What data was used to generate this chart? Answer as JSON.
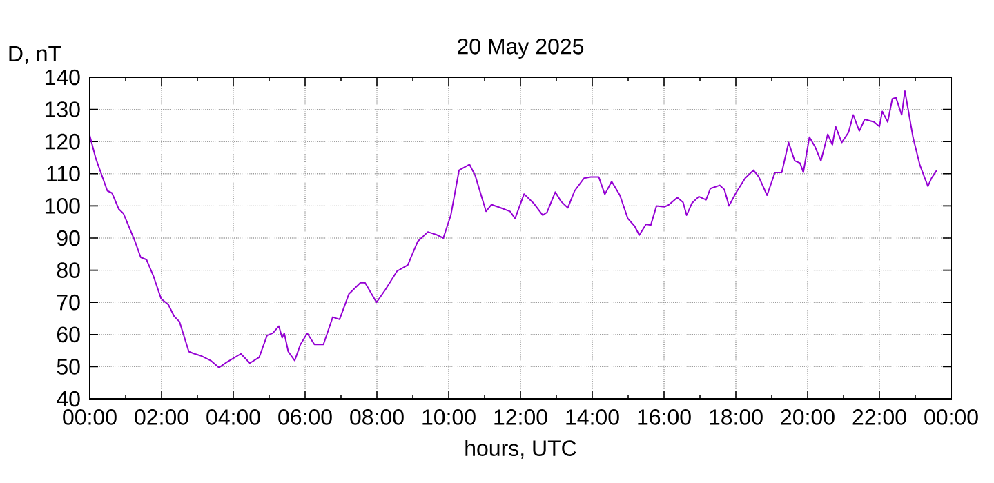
{
  "chart_data": {
    "type": "line",
    "title": "20 May 2025",
    "xlabel": "hours, UTC",
    "ylabel": "D, nT",
    "x": [
      0,
      0.17,
      0.49,
      0.62,
      0.81,
      0.94,
      1.26,
      1.42,
      1.58,
      1.77,
      1.99,
      2.19,
      2.35,
      2.5,
      2.76,
      2.92,
      3.12,
      3.37,
      3.6,
      3.82,
      4.21,
      4.46,
      4.72,
      4.94,
      5.1,
      5.27,
      5.36,
      5.42,
      5.53,
      5.71,
      5.87,
      6.06,
      6.26,
      6.51,
      6.77,
      6.96,
      7.22,
      7.54,
      7.67,
      7.99,
      8.24,
      8.56,
      8.86,
      9.14,
      9.42,
      9.65,
      9.85,
      10.06,
      10.29,
      10.58,
      10.74,
      11.04,
      11.19,
      11.45,
      11.71,
      11.85,
      12.1,
      12.36,
      12.62,
      12.74,
      12.97,
      13.13,
      13.32,
      13.51,
      13.77,
      13.96,
      14.18,
      14.35,
      14.54,
      14.77,
      14.99,
      15.18,
      15.31,
      15.5,
      15.63,
      15.79,
      16.01,
      16.14,
      16.37,
      16.53,
      16.63,
      16.78,
      16.97,
      17.17,
      17.29,
      17.55,
      17.68,
      17.81,
      18.0,
      18.26,
      18.49,
      18.64,
      18.87,
      19.09,
      19.28,
      19.47,
      19.64,
      19.79,
      19.88,
      20.05,
      20.21,
      20.37,
      20.56,
      20.69,
      20.78,
      20.95,
      21.14,
      21.27,
      21.44,
      21.59,
      21.85,
      22.0,
      22.08,
      22.23,
      22.36,
      22.46,
      22.62,
      22.71,
      22.94,
      23.13,
      23.35,
      23.45,
      23.6
    ],
    "series": [
      {
        "color": "#9400d3",
        "values": [
          121.9,
          114.7,
          104.7,
          104,
          99,
          97.6,
          89,
          84,
          83.3,
          78.3,
          71.1,
          69.3,
          65.7,
          64,
          54.7,
          54,
          53.3,
          51.9,
          49.7,
          51.4,
          54,
          51.1,
          52.9,
          59.7,
          60.4,
          62.6,
          59,
          60.4,
          54.7,
          51.9,
          56.9,
          60.4,
          56.9,
          56.9,
          65.4,
          64.7,
          72.6,
          76.1,
          76.1,
          70,
          74,
          79.7,
          81.6,
          89,
          91.9,
          91.1,
          90,
          97.1,
          111.1,
          112.9,
          109.4,
          98.3,
          100.4,
          99.4,
          98.3,
          96.1,
          103.7,
          100.9,
          97.1,
          98,
          104.3,
          101.4,
          99.4,
          104.7,
          108.6,
          109,
          109,
          103.6,
          107.6,
          103.3,
          96.1,
          93.7,
          90.9,
          94.3,
          94,
          100,
          99.7,
          100.4,
          102.6,
          101.1,
          97.1,
          100.9,
          102.9,
          101.9,
          105.4,
          106.4,
          105.1,
          100,
          104,
          108.6,
          111.1,
          109,
          103.3,
          110.4,
          110.4,
          119.7,
          114,
          113.3,
          110.4,
          121.4,
          118.3,
          114,
          122.3,
          119,
          124.7,
          119.7,
          122.9,
          128.3,
          123.3,
          126.9,
          126.1,
          124.7,
          129.4,
          126.1,
          133.3,
          133.7,
          128.3,
          135.7,
          121.1,
          112.6,
          106.1,
          108.6,
          111.1
        ]
      }
    ],
    "xlim": [
      0,
      24
    ],
    "xticks": [
      {
        "value": 0,
        "label": "00:00"
      },
      {
        "value": 1,
        "label": null
      },
      {
        "value": 2,
        "label": "02:00"
      },
      {
        "value": 3,
        "label": null
      },
      {
        "value": 4,
        "label": "04:00"
      },
      {
        "value": 5,
        "label": null
      },
      {
        "value": 6,
        "label": "06:00"
      },
      {
        "value": 7,
        "label": null
      },
      {
        "value": 8,
        "label": "08:00"
      },
      {
        "value": 9,
        "label": null
      },
      {
        "value": 10,
        "label": "10:00"
      },
      {
        "value": 11,
        "label": null
      },
      {
        "value": 12,
        "label": "12:00"
      },
      {
        "value": 13,
        "label": null
      },
      {
        "value": 14,
        "label": "14:00"
      },
      {
        "value": 15,
        "label": null
      },
      {
        "value": 16,
        "label": "16:00"
      },
      {
        "value": 17,
        "label": null
      },
      {
        "value": 18,
        "label": "18:00"
      },
      {
        "value": 19,
        "label": null
      },
      {
        "value": 20,
        "label": "20:00"
      },
      {
        "value": 21,
        "label": null
      },
      {
        "value": 22,
        "label": "22:00"
      },
      {
        "value": 23,
        "label": null
      },
      {
        "value": 24,
        "label": "00:00"
      }
    ],
    "ylim": [
      40,
      140
    ],
    "yticks": [
      40,
      50,
      60,
      70,
      80,
      90,
      100,
      110,
      120,
      130,
      140
    ],
    "grid": true,
    "marker": "none",
    "line_style": "solid"
  }
}
